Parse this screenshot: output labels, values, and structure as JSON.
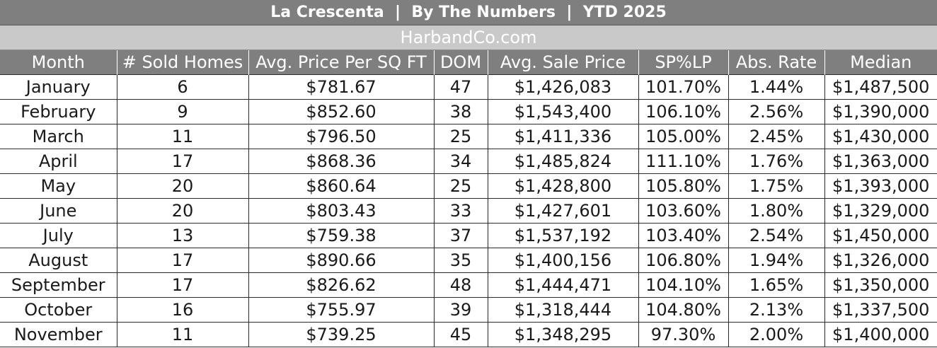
{
  "title": "La Crescenta  |  By The Numbers  |  YTD 2025",
  "site": "HarbandCo.com",
  "chart_data": {
    "type": "table",
    "columns": [
      "Month",
      "# Sold Homes",
      "Avg. Price Per SQ FT",
      "DOM",
      "Avg. Sale Price",
      "SP%LP",
      "Abs. Rate",
      "Median"
    ],
    "rows": [
      [
        "January",
        "6",
        "$781.67",
        "47",
        "$1,426,083",
        "101.70%",
        "1.44%",
        "$1,487,500"
      ],
      [
        "February",
        "9",
        "$852.60",
        "38",
        "$1,543,400",
        "106.10%",
        "2.56%",
        "$1,390,000"
      ],
      [
        "March",
        "11",
        "$796.50",
        "25",
        "$1,411,336",
        "105.00%",
        "2.45%",
        "$1,430,000"
      ],
      [
        "April",
        "17",
        "$868.36",
        "34",
        "$1,485,824",
        "111.10%",
        "1.76%",
        "$1,363,000"
      ],
      [
        "May",
        "20",
        "$860.64",
        "25",
        "$1,428,800",
        "105.80%",
        "1.75%",
        "$1,393,000"
      ],
      [
        "June",
        "20",
        "$803.43",
        "33",
        "$1,427,601",
        "103.60%",
        "1.80%",
        "$1,329,000"
      ],
      [
        "July",
        "13",
        "$759.38",
        "37",
        "$1,537,192",
        "103.40%",
        "2.54%",
        "$1,450,000"
      ],
      [
        "August",
        "17",
        "$890.66",
        "35",
        "$1,400,156",
        "106.80%",
        "1.94%",
        "$1,326,000"
      ],
      [
        "September",
        "17",
        "$826.62",
        "48",
        "$1,444,471",
        "104.10%",
        "1.65%",
        "$1,350,000"
      ],
      [
        "October",
        "16",
        "$755.97",
        "39",
        "$1,318,444",
        "104.80%",
        "2.13%",
        "$1,337,500"
      ],
      [
        "November",
        "11",
        "$739.25",
        "45",
        "$1,348,295",
        "97.30%",
        "2.00%",
        "$1,400,000"
      ]
    ]
  },
  "colors": {
    "header_bg": "#7f7f7f",
    "site_bar_bg": "#c9c9c9",
    "header_text": "#ffffff",
    "cell_text": "#1a1a1a",
    "grid": "#2b2b2b"
  }
}
